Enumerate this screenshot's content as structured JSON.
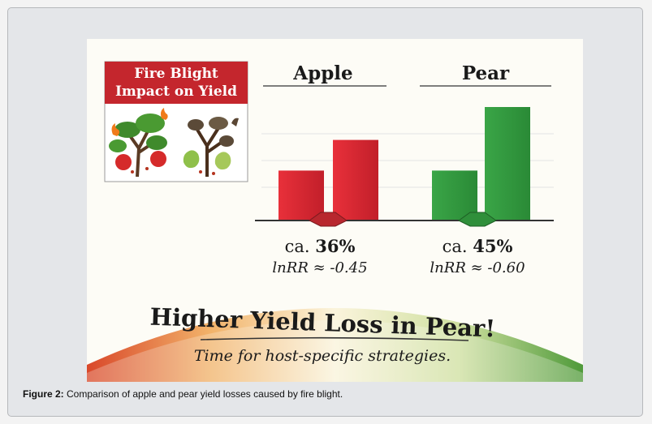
{
  "figure": {
    "inset_title_line1": "Fire Blight",
    "inset_title_line2": "Impact on Yield",
    "headline": "Higher Yield Loss in Pear!",
    "subline": "Time for host-specific strategies.",
    "colors": {
      "apple": "#cc2a30",
      "pear": "#3a9a3e",
      "inset_header": "#c4262d"
    }
  },
  "caption": {
    "label": "Figure 2:",
    "text": " Comparison of apple and pear yield losses caused by fire blight."
  },
  "chart_data": {
    "type": "bar",
    "title": "",
    "categories": [
      "Apple",
      "Pear"
    ],
    "bars_per_group": 2,
    "relative_heights": {
      "Apple": [
        0.44,
        0.71
      ],
      "Pear": [
        0.44,
        1.0
      ]
    },
    "annotations": [
      {
        "group": "Apple",
        "loss": "ca. 36%",
        "lnrr": "lnRR ≈ -0.45"
      },
      {
        "group": "Pear",
        "loss": "ca. 45%",
        "lnrr": "lnRR ≈ -0.60"
      }
    ],
    "grid": true,
    "legend": "none"
  }
}
